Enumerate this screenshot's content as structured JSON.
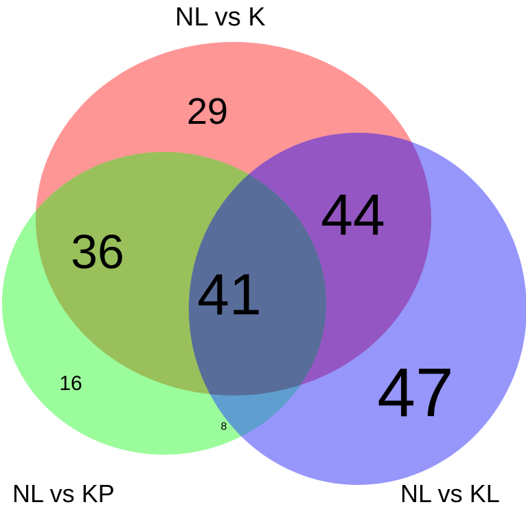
{
  "sets": {
    "k": {
      "label": "NL vs K",
      "color": "#ff9696"
    },
    "kp": {
      "label": "NL vs KP",
      "color": "#9bfc9b"
    },
    "kl": {
      "label": "NL vs KL",
      "color": "#9696fb"
    }
  },
  "regions": {
    "k_only": "29",
    "kp_only": "16",
    "kl_only": "47",
    "k_kp": "36",
    "k_kl": "44",
    "kp_kl": "8",
    "all": "41"
  },
  "overlap_colors": {
    "k_kp": "#99c05b",
    "k_kl": "#9456c2",
    "kp_kl": "#5e9fcf",
    "all": "#586d99"
  }
}
